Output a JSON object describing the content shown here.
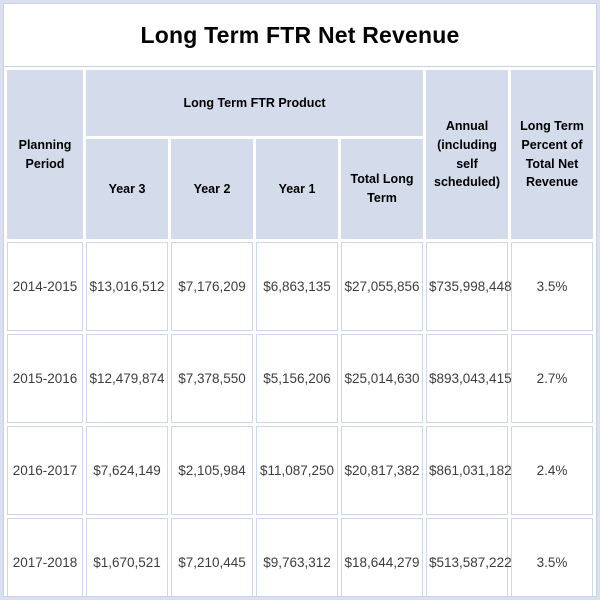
{
  "title": "Long Term FTR Net Revenue",
  "header": {
    "planning_period": "Planning Period",
    "product_group": "Long Term FTR Product",
    "annual": "Annual (including self scheduled)",
    "long_term_percent": "Long Term Percent of Total Net Revenue",
    "year3": "Year 3",
    "year2": "Year 2",
    "year1": "Year 1",
    "total_long_term": "Total Long Term"
  },
  "rows": [
    {
      "period": "2014-2015",
      "year3": "$13,016,512",
      "year2": "$7,176,209",
      "year1": "$6,863,135",
      "total_long_term": "$27,055,856",
      "annual": "$735,998,448",
      "percent": "3.5%"
    },
    {
      "period": "2015-2016",
      "year3": "$12,479,874",
      "year2": "$7,378,550",
      "year1": "$5,156,206",
      "total_long_term": "$25,014,630",
      "annual": "$893,043,415",
      "percent": "2.7%"
    },
    {
      "period": "2016-2017",
      "year3": "$7,624,149",
      "year2": "$2,105,984",
      "year1": "$11,087,250",
      "total_long_term": "$20,817,382",
      "annual": "$861,031,182",
      "percent": "2.4%"
    },
    {
      "period": "2017-2018",
      "year3": "$1,670,521",
      "year2": "$7,210,445",
      "year1": "$9,763,312",
      "total_long_term": "$18,644,279",
      "annual": "$513,587,222",
      "percent": "3.5%"
    }
  ],
  "colors": {
    "frame": "#dae0ef",
    "header_fill": "#d4dceb",
    "cell_border": "#ccd7ec",
    "inner_border": "#c9d2e5",
    "title_text": "#000000",
    "data_text": "#3d3d3d"
  },
  "chart_data": {
    "type": "table",
    "title": "Long Term FTR Net Revenue",
    "column_groups": [
      {
        "label": "Long Term FTR Product",
        "columns": [
          "Year 3",
          "Year 2",
          "Year 1",
          "Total Long Term"
        ]
      }
    ],
    "columns": [
      "Planning Period",
      "Year 3",
      "Year 2",
      "Year 1",
      "Total Long Term",
      "Annual (including self scheduled)",
      "Long Term Percent of Total Net Revenue"
    ],
    "rows": [
      [
        "2014-2015",
        13016512,
        7176209,
        6863135,
        27055856,
        735998448,
        "3.5%"
      ],
      [
        "2015-2016",
        12479874,
        7378550,
        5156206,
        25014630,
        893043415,
        "2.7%"
      ],
      [
        "2016-2017",
        7624149,
        2105984,
        11087250,
        20817382,
        861031182,
        "2.4%"
      ],
      [
        "2017-2018",
        1670521,
        7210445,
        9763312,
        18644279,
        513587222,
        "3.5%"
      ]
    ]
  }
}
